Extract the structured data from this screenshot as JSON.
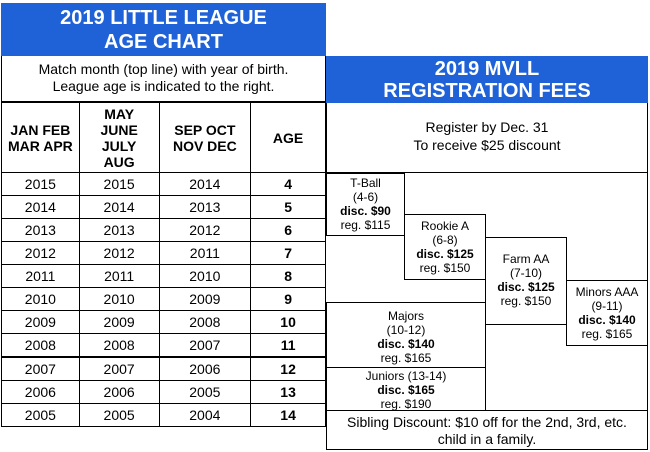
{
  "age_chart": {
    "title_line1": "2019 LITTLE LEAGUE",
    "title_line2": "AGE CHART",
    "instruction_line1": "Match month (top line) with year of birth.",
    "instruction_line2": "League age is indicated to the right.",
    "headers": [
      [
        "JAN FEB",
        "MAR APR"
      ],
      [
        "MAY",
        "JUNE",
        "JULY",
        "AUG"
      ],
      [
        "SEP OCT",
        "NOV DEC"
      ],
      [
        "AGE"
      ]
    ],
    "rows": [
      [
        "2015",
        "2015",
        "2014",
        "4"
      ],
      [
        "2014",
        "2014",
        "2013",
        "5"
      ],
      [
        "2013",
        "2013",
        "2012",
        "6"
      ],
      [
        "2012",
        "2012",
        "2011",
        "7"
      ],
      [
        "2011",
        "2011",
        "2010",
        "8"
      ],
      [
        "2010",
        "2010",
        "2009",
        "9"
      ],
      [
        "2009",
        "2009",
        "2008",
        "10"
      ],
      [
        "2008",
        "2008",
        "2007",
        "11"
      ],
      [
        "2007",
        "2007",
        "2006",
        "12"
      ],
      [
        "2006",
        "2006",
        "2005",
        "13"
      ],
      [
        "2005",
        "2005",
        "2004",
        "14"
      ]
    ]
  },
  "fees": {
    "title_line1": "2019 MVLL",
    "title_line2": "REGISTRATION FEES",
    "register_line1": "Register by Dec. 31",
    "register_line2": "To receive $25 discount",
    "divisions": [
      {
        "name": "T-Ball",
        "ages": "(4-6)",
        "disc": "disc. $90",
        "reg": "reg. $115"
      },
      {
        "name": "Rookie A",
        "ages": "(6-8)",
        "disc": "disc. $125",
        "reg": "reg. $150"
      },
      {
        "name": "Farm AA",
        "ages": "(7-10)",
        "disc": "disc. $125",
        "reg": "reg. $150"
      },
      {
        "name": "Minors AAA",
        "ages": "(9-11)",
        "disc": "disc. $140",
        "reg": "reg. $165"
      },
      {
        "name": "Majors",
        "ages": "(10-12)",
        "disc": "disc. $140",
        "reg": "reg. $165"
      },
      {
        "name": "Juniors (13-14)",
        "ages": "",
        "disc": "disc. $165",
        "reg": "reg. $190"
      }
    ],
    "sibling_line1": "Sibling Discount: $10 off for the 2nd, 3rd, etc.",
    "sibling_line2": "child in a family."
  }
}
